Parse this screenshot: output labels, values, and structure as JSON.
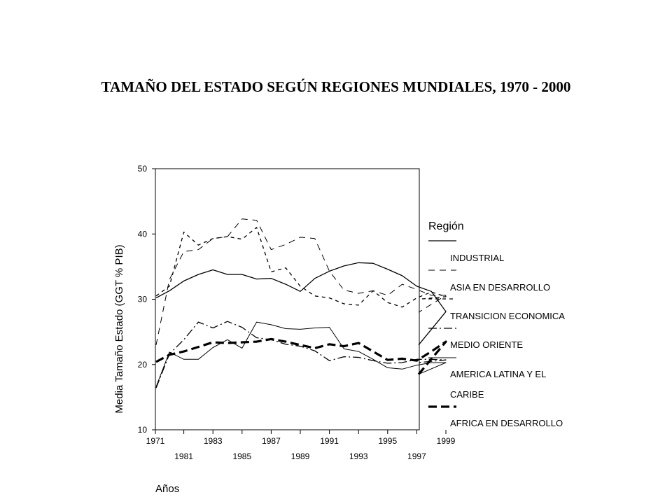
{
  "page": {
    "title": "TAMAÑO DEL ESTADO SEGÚN REGIONES MUNDIALES, 1970 - 2000"
  },
  "chart_data": {
    "type": "line",
    "title": "TAMAÑO DEL ESTADO SEGÚN REGIONES MUNDIALES, 1970 - 2000",
    "xlabel": "Años",
    "ylabel": "Media Tamaño Estado (GGT % PIB)",
    "xlim": [
      1971,
      2000
    ],
    "ylim": [
      10,
      50
    ],
    "yticks": [
      10,
      20,
      30,
      40,
      50
    ],
    "xticks_row1": [
      "1971",
      "1983",
      "1987",
      "1991",
      "1995",
      "1999"
    ],
    "xticks_row2": [
      "1981",
      "1985",
      "1989",
      "1993",
      "1997"
    ],
    "legend": {
      "title": "Región",
      "placement": "right"
    },
    "x": [
      1971,
      1972,
      1981,
      1982,
      1983,
      1984,
      1985,
      1986,
      1987,
      1988,
      1989,
      1990,
      1991,
      1992,
      1993,
      1994,
      1995,
      1996,
      1997,
      1998,
      1999,
      2000
    ],
    "series": [
      {
        "name": "INDUSTRIAL",
        "style": "solid",
        "width": 1.3,
        "color": "#000000",
        "values": [
          30.2,
          31.3,
          32.8,
          33.8,
          34.5,
          33.8,
          33.8,
          33.1,
          33.2,
          32.3,
          31.2,
          33.2,
          34.3,
          35.1,
          35.6,
          35.5,
          34.6,
          33.6,
          32.0,
          31.2,
          28.1,
          23.0
        ]
      },
      {
        "name": "ASIA EN DESARROLLO",
        "style": "longdash",
        "width": 1.0,
        "color": "#000000",
        "values": [
          23.0,
          33.0,
          37.3,
          37.6,
          39.3,
          39.6,
          42.3,
          42.1,
          37.6,
          38.4,
          39.5,
          39.3,
          34.3,
          31.4,
          30.9,
          31.3,
          30.6,
          32.3,
          31.5,
          30.6,
          30.6,
          28.0
        ]
      },
      {
        "name": "TRANSICION ECONOMICA",
        "style": "dash",
        "width": 1.3,
        "color": "#000000",
        "values": [
          30.5,
          32.0,
          40.3,
          38.3,
          39.3,
          39.6,
          39.2,
          41.0,
          34.2,
          34.8,
          32.0,
          30.5,
          30.2,
          29.3,
          29.1,
          31.3,
          29.5,
          28.8,
          30.2,
          31.1,
          30.4,
          30.0
        ]
      },
      {
        "name": "MEDIO ORIENTE",
        "style": "dashdot",
        "width": 1.3,
        "color": "#000000",
        "values": [
          16.4,
          21.6,
          23.8,
          26.5,
          25.6,
          26.6,
          25.7,
          24.1,
          23.8,
          23.1,
          22.8,
          22.1,
          20.6,
          21.2,
          21.1,
          20.6,
          20.2,
          20.3,
          20.8,
          20.8,
          20.7,
          20.3
        ]
      },
      {
        "name": "AMERICA LATINA Y EL CARIBE",
        "style": "solid",
        "width": 1.0,
        "color": "#000000",
        "values": [
          16.6,
          21.9,
          20.8,
          20.8,
          22.6,
          23.8,
          22.5,
          26.5,
          26.1,
          25.5,
          25.4,
          25.6,
          25.7,
          22.4,
          22.0,
          20.8,
          19.5,
          19.3,
          19.9,
          20.3,
          20.3,
          18.5
        ]
      },
      {
        "name": "AFRICA EN DESARROLLO",
        "style": "boldash",
        "width": 3.2,
        "color": "#000000",
        "values": [
          20.4,
          21.5,
          22.0,
          22.7,
          23.4,
          23.3,
          23.4,
          23.5,
          23.9,
          23.5,
          23.0,
          22.5,
          23.1,
          22.8,
          23.3,
          22.0,
          20.7,
          20.9,
          20.6,
          22.0,
          23.5,
          18.5
        ]
      }
    ],
    "legend_lines": [
      "INDUSTRIAL",
      "ASIA EN DESARROLLO",
      "TRANSICION ECONOMICA",
      "MEDIO ORIENTE",
      "AMERICA LATINA Y EL",
      "CARIBE",
      "AFRICA EN DESARROLLO"
    ],
    "grid": false
  }
}
